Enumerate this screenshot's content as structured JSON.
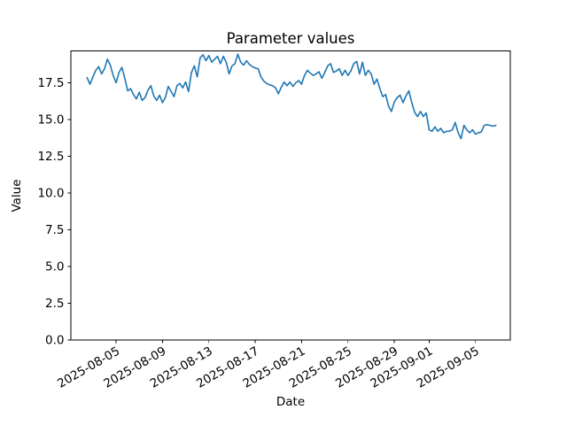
{
  "window": {
    "background": "#ffffff"
  },
  "chart_data": {
    "type": "line",
    "title": "Parameter values",
    "grid": false,
    "legend": null,
    "x_axis": {
      "label": "Date",
      "origin_date": "2025-08-01",
      "lim_days": [
        0.1,
        38.0
      ],
      "tick_rotation_deg": 30,
      "ticks": [
        {
          "d": 4,
          "label": "2025-08-05"
        },
        {
          "d": 8,
          "label": "2025-08-09"
        },
        {
          "d": 12,
          "label": "2025-08-13"
        },
        {
          "d": 16,
          "label": "2025-08-17"
        },
        {
          "d": 20,
          "label": "2025-08-21"
        },
        {
          "d": 24,
          "label": "2025-08-25"
        },
        {
          "d": 28,
          "label": "2025-08-29"
        },
        {
          "d": 31,
          "label": "2025-09-01"
        },
        {
          "d": 35,
          "label": "2025-09-05"
        }
      ]
    },
    "y_axis": {
      "label": "Value",
      "lim": [
        0,
        19.66
      ],
      "ticks": [
        {
          "v": 0,
          "label": "0.0"
        },
        {
          "v": 2.5,
          "label": "2.5"
        },
        {
          "v": 5,
          "label": "5.0"
        },
        {
          "v": 7.5,
          "label": "7.5"
        },
        {
          "v": 10,
          "label": "10.0"
        },
        {
          "v": 12.5,
          "label": "12.5"
        },
        {
          "v": 15,
          "label": "15.0"
        },
        {
          "v": 17.5,
          "label": "17.5"
        }
      ]
    },
    "series": [
      {
        "name": "parameter-values",
        "color": "#1f77b4",
        "line_width": 1.6,
        "x_start_day_offset": 1.5,
        "x_step_days": 0.25,
        "values": [
          17.85,
          17.4,
          17.9,
          18.35,
          18.6,
          18.1,
          18.45,
          19.1,
          18.7,
          18.0,
          17.5,
          18.2,
          18.55,
          17.8,
          16.95,
          17.1,
          16.7,
          16.4,
          16.85,
          16.3,
          16.5,
          17.0,
          17.3,
          16.6,
          16.3,
          16.65,
          16.15,
          16.5,
          17.25,
          16.9,
          16.55,
          17.3,
          17.45,
          17.15,
          17.55,
          16.9,
          18.2,
          18.65,
          17.9,
          19.2,
          19.4,
          19.0,
          19.35,
          18.9,
          19.1,
          19.3,
          18.8,
          19.3,
          18.9,
          18.1,
          18.65,
          18.8,
          19.45,
          18.9,
          18.7,
          19.0,
          18.75,
          18.6,
          18.5,
          18.45,
          17.9,
          17.6,
          17.45,
          17.35,
          17.3,
          17.15,
          16.75,
          17.2,
          17.55,
          17.3,
          17.55,
          17.25,
          17.5,
          17.65,
          17.4,
          18.0,
          18.35,
          18.15,
          18.0,
          18.1,
          18.25,
          17.8,
          18.2,
          18.65,
          18.8,
          18.2,
          18.3,
          18.45,
          18.0,
          18.35,
          18.0,
          18.3,
          18.8,
          18.95,
          18.1,
          18.9,
          18.0,
          18.35,
          18.1,
          17.4,
          17.75,
          17.1,
          16.55,
          16.7,
          15.9,
          15.55,
          16.2,
          16.5,
          16.65,
          16.15,
          16.6,
          16.95,
          16.15,
          15.5,
          15.2,
          15.55,
          15.2,
          15.45,
          14.3,
          14.2,
          14.5,
          14.2,
          14.4,
          14.1,
          14.2,
          14.2,
          14.3,
          14.8,
          14.1,
          13.7,
          14.6,
          14.3,
          14.1,
          14.3,
          14.0,
          14.1,
          14.15,
          14.6,
          14.65,
          14.6,
          14.55,
          14.6
        ]
      }
    ]
  }
}
